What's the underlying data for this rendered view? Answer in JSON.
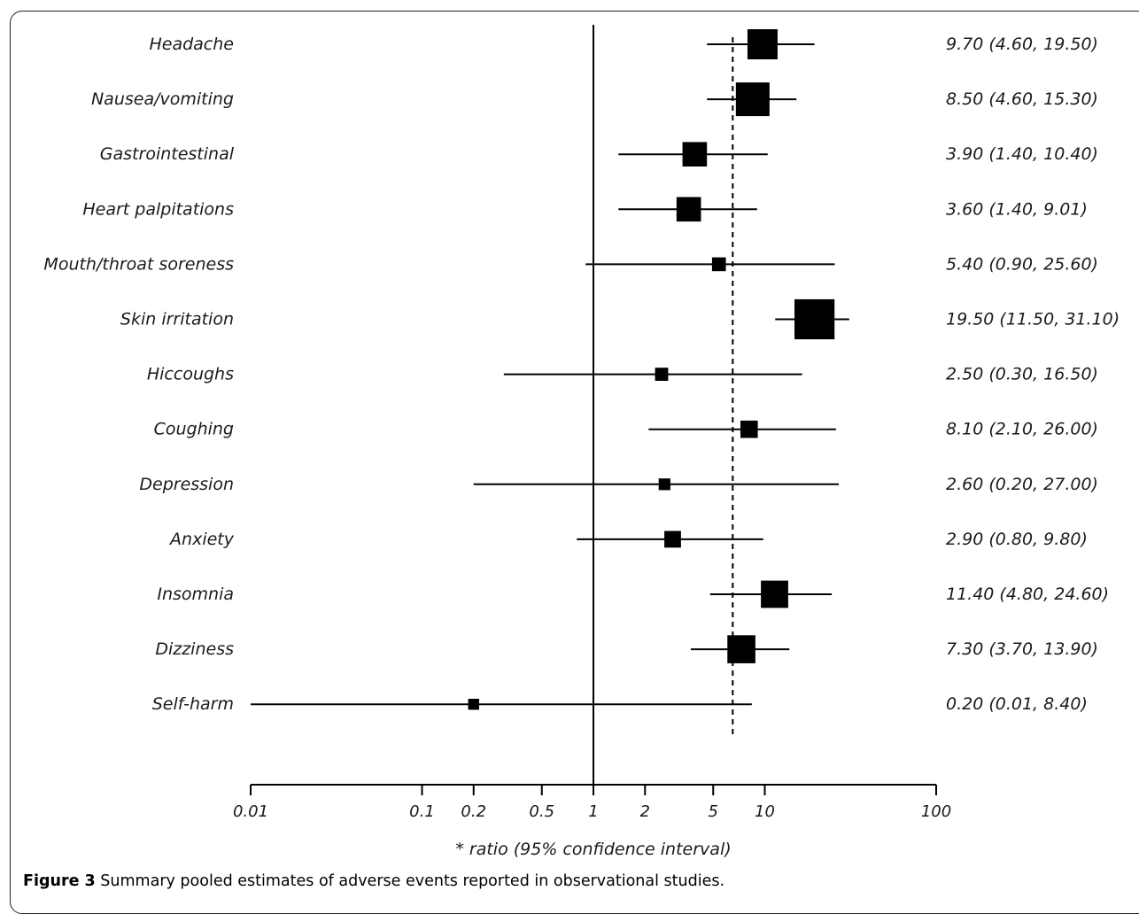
{
  "chart_data": {
    "type": "forest",
    "xscale": "log",
    "xlim": [
      0.01,
      100
    ],
    "reference_line": 1,
    "pooled_estimate_line": 6.5,
    "xlabel": "* ratio (95% confidence interval)",
    "ticks": [
      {
        "value": 0.01,
        "label": "0.01"
      },
      {
        "value": 0.1,
        "label": "0.1"
      },
      {
        "value": 0.2,
        "label": "0.2"
      },
      {
        "value": 0.5,
        "label": "0.5"
      },
      {
        "value": 1,
        "label": "1"
      },
      {
        "value": 2,
        "label": "2"
      },
      {
        "value": 5,
        "label": "5"
      },
      {
        "value": 10,
        "label": "10"
      },
      {
        "value": 100,
        "label": "100"
      }
    ],
    "rows": [
      {
        "label": "Headache",
        "estimate": 9.7,
        "lower": 4.6,
        "upper": 19.5,
        "weight": 3,
        "text": "9.70 (4.60, 19.50)"
      },
      {
        "label": "Nausea/vomiting",
        "estimate": 8.5,
        "lower": 4.6,
        "upper": 15.3,
        "weight": 3.5,
        "text": "8.50 (4.60, 15.30)"
      },
      {
        "label": "Gastrointestinal",
        "estimate": 3.9,
        "lower": 1.4,
        "upper": 10.4,
        "weight": 2.2,
        "text": "3.90 (1.40, 10.40)"
      },
      {
        "label": "Heart palpitations",
        "estimate": 3.6,
        "lower": 1.4,
        "upper": 9.01,
        "weight": 2.2,
        "text": "3.60 (1.40, 9.01)"
      },
      {
        "label": "Mouth/throat soreness",
        "estimate": 5.4,
        "lower": 0.9,
        "upper": 25.6,
        "weight": 0.7,
        "text": "5.40 (0.90, 25.60)"
      },
      {
        "label": "Skin irritation",
        "estimate": 19.5,
        "lower": 11.5,
        "upper": 31.1,
        "weight": 4.4,
        "text": "19.50 (11.50, 31.10)"
      },
      {
        "label": "Hiccoughs",
        "estimate": 2.5,
        "lower": 0.3,
        "upper": 16.5,
        "weight": 0.6,
        "text": "2.50 (0.30, 16.50)"
      },
      {
        "label": "Coughing",
        "estimate": 8.1,
        "lower": 2.1,
        "upper": 26.0,
        "weight": 1.2,
        "text": "8.10 (2.10, 26.00)"
      },
      {
        "label": "Depression",
        "estimate": 2.6,
        "lower": 0.2,
        "upper": 27.0,
        "weight": 0.4,
        "text": "2.60 (0.20, 27.00)"
      },
      {
        "label": "Anxiety",
        "estimate": 2.9,
        "lower": 0.8,
        "upper": 9.8,
        "weight": 1.1,
        "text": "2.90 (0.80, 9.80)"
      },
      {
        "label": "Insomnia",
        "estimate": 11.4,
        "lower": 4.8,
        "upper": 24.6,
        "weight": 2.6,
        "text": "11.40 (4.80, 24.60)"
      },
      {
        "label": "Dizziness",
        "estimate": 7.3,
        "lower": 3.7,
        "upper": 13.9,
        "weight": 2.7,
        "text": "7.30 (3.70, 13.90)"
      },
      {
        "label": "Self-harm",
        "estimate": 0.2,
        "lower": 0.01,
        "upper": 8.4,
        "weight": 0.3,
        "text": "0.20 (0.01, 8.40)"
      }
    ]
  },
  "caption": {
    "label": "Figure 3",
    "text": "Summary pooled estimates of adverse events reported in observational studies",
    "end": "."
  }
}
